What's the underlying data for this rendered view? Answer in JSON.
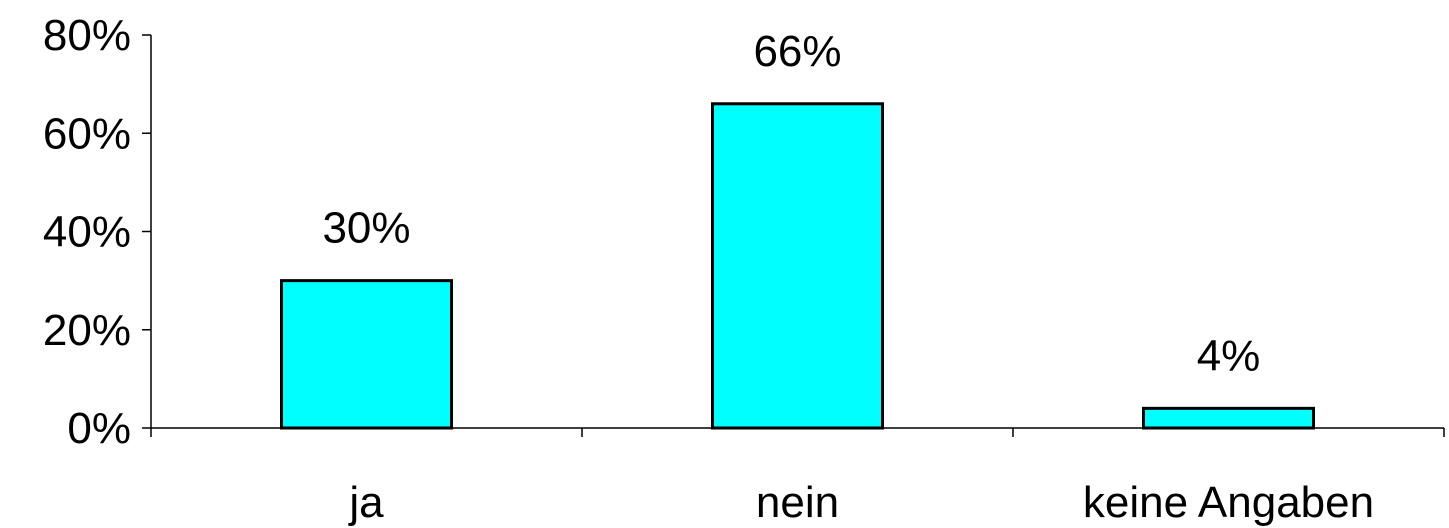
{
  "chart_data": {
    "type": "bar",
    "categories": [
      "ja",
      "nein",
      "keine Angaben"
    ],
    "values": [
      30,
      66,
      4
    ],
    "data_labels": [
      "30%",
      "66%",
      "4%"
    ],
    "ylim": [
      0,
      80
    ],
    "yticks": [
      0,
      20,
      40,
      60,
      80
    ],
    "ytick_labels": [
      "0%",
      "20%",
      "40%",
      "60%",
      "80%"
    ],
    "grid": false,
    "bar_color": "#00FFFF",
    "bar_edge_color": "#000000"
  }
}
